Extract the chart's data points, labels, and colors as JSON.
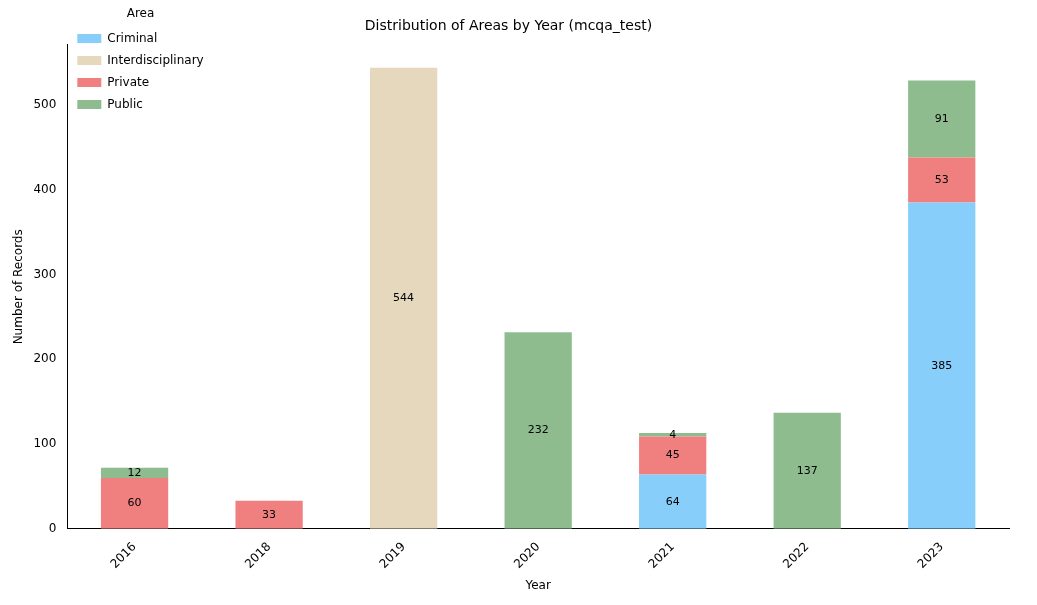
{
  "chart_data": {
    "type": "bar",
    "title": "Distribution of Areas by Year (mcqa_test)",
    "xlabel": "Year",
    "ylabel": "Number of Records",
    "legend_title": "Area",
    "categories": [
      "2016",
      "2018",
      "2019",
      "2020",
      "2021",
      "2022",
      "2023"
    ],
    "series": [
      {
        "name": "Criminal",
        "color": "#87cefa",
        "values": [
          null,
          null,
          null,
          null,
          64,
          null,
          385
        ]
      },
      {
        "name": "Interdisciplinary",
        "color": "#e5d8bd",
        "values": [
          null,
          null,
          544,
          null,
          null,
          null,
          null
        ]
      },
      {
        "name": "Private",
        "color": "#f08080",
        "values": [
          60,
          33,
          null,
          null,
          45,
          null,
          53
        ]
      },
      {
        "name": "Public",
        "color": "#8fbc8f",
        "values": [
          12,
          null,
          null,
          232,
          4,
          137,
          91
        ]
      }
    ],
    "stacked": true,
    "data_labels": true,
    "ylim": [
      0,
      571
    ],
    "yticks": [
      0,
      100,
      200,
      300,
      400,
      500
    ],
    "grid": false,
    "legend": "top left"
  }
}
